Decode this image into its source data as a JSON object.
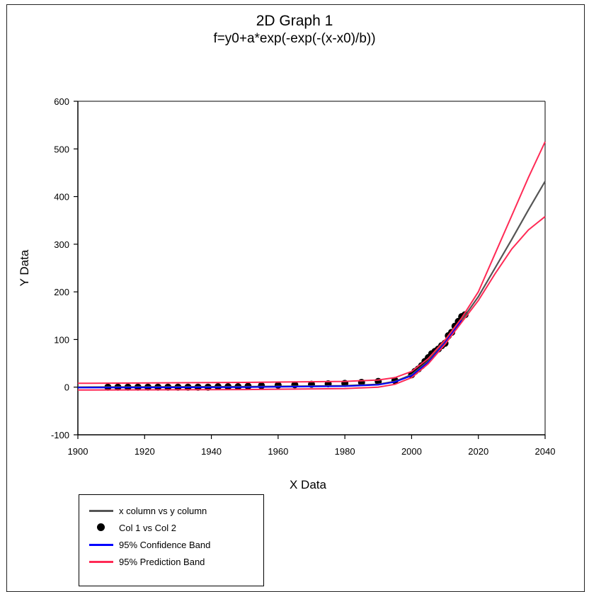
{
  "chart_data": {
    "type": "line",
    "title": "2D Graph 1",
    "subtitle": "f=y0+a*exp(-exp(-(x-x0)/b))",
    "xlabel": "X Data",
    "ylabel": "Y Data",
    "xlim": [
      1900,
      2040
    ],
    "ylim": [
      -100,
      600
    ],
    "xticks": [
      1900,
      1920,
      1940,
      1960,
      1980,
      2000,
      2020,
      2040
    ],
    "yticks": [
      -100,
      0,
      100,
      200,
      300,
      400,
      500,
      600
    ],
    "grid": false,
    "legend_position": "bottom-left",
    "series": [
      {
        "name": "x column vs y column",
        "kind": "line",
        "color": "#555555",
        "x": [
          1900,
          1950,
          1980,
          1990,
          1995,
          2000,
          2005,
          2010,
          2015,
          2020,
          2025,
          2030,
          2035,
          2040
        ],
        "y": [
          0,
          1,
          3,
          6,
          12,
          26,
          55,
          95,
          140,
          190,
          250,
          310,
          372,
          432
        ]
      },
      {
        "name": "Col 1 vs Col 2",
        "kind": "scatter",
        "color": "#000000",
        "x": [
          1909,
          1912,
          1915,
          1918,
          1921,
          1924,
          1927,
          1930,
          1933,
          1936,
          1939,
          1942,
          1945,
          1948,
          1951,
          1955,
          1960,
          1965,
          1970,
          1975,
          1980,
          1985,
          1990,
          1995,
          2000,
          2001,
          2002,
          2003,
          2004,
          2005,
          2006,
          2007,
          2008,
          2009,
          2010,
          2011,
          2012,
          2013,
          2014,
          2015,
          2016
        ],
        "y": [
          0,
          0,
          0,
          0,
          0,
          0,
          0,
          0,
          0,
          0,
          0,
          1,
          1,
          1,
          2,
          3,
          4,
          5,
          6,
          7,
          8,
          10,
          12,
          14,
          26,
          33,
          38,
          45,
          54,
          62,
          70,
          75,
          80,
          87,
          92,
          108,
          115,
          128,
          138,
          148,
          152
        ]
      },
      {
        "name": "95% Confidence Band",
        "kind": "line",
        "color": "#0000ff",
        "x": [
          1900,
          1950,
          1980,
          1990,
          1995,
          2000,
          2005,
          2010,
          2015
        ],
        "y": [
          -1,
          0,
          2,
          5,
          11,
          24,
          52,
          93,
          140
        ]
      },
      {
        "name": "95% Prediction Band",
        "kind": "band",
        "color": "#ff2a55",
        "x": [
          1900,
          1950,
          1980,
          1990,
          1995,
          2000,
          2005,
          2010,
          2015,
          2020,
          2025,
          2030,
          2035,
          2040
        ],
        "y_upper": [
          8,
          10,
          12,
          15,
          20,
          33,
          60,
          99,
          145,
          200,
          280,
          360,
          440,
          515
        ],
        "y_lower": [
          -6,
          -5,
          -3,
          0,
          6,
          20,
          49,
          90,
          136,
          182,
          238,
          290,
          330,
          358
        ]
      }
    ]
  }
}
